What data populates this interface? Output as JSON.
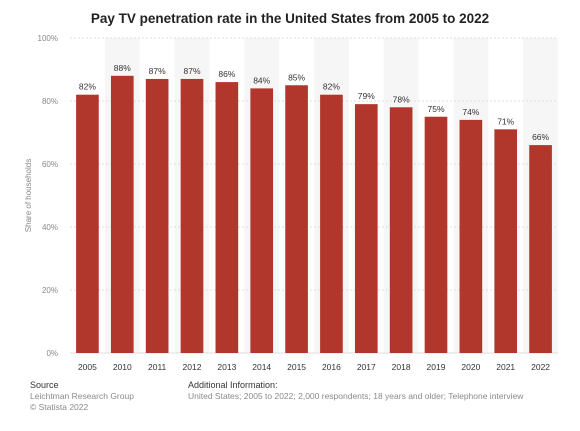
{
  "title": "Pay TV penetration rate in the United States from 2005 to 2022",
  "colors": {
    "bar": "#b1362b",
    "band": "#f6f6f6",
    "grid": "#dddddd"
  },
  "chart_data": {
    "type": "bar",
    "categories": [
      "2005",
      "2010",
      "2011",
      "2012",
      "2013",
      "2014",
      "2015",
      "2016",
      "2017",
      "2018",
      "2019",
      "2020",
      "2021",
      "2022"
    ],
    "values": [
      82,
      88,
      87,
      87,
      86,
      84,
      85,
      82,
      79,
      78,
      75,
      74,
      71,
      66
    ],
    "data_labels": [
      "82%",
      "88%",
      "87%",
      "87%",
      "86%",
      "84%",
      "85%",
      "82%",
      "79%",
      "78%",
      "75%",
      "74%",
      "71%",
      "66%"
    ],
    "ylabel": "Share of households",
    "ylim": [
      0,
      100
    ],
    "yticks": [
      0,
      20,
      40,
      60,
      80,
      100
    ],
    "ytick_labels": [
      "0%",
      "20%",
      "40%",
      "60%",
      "80%",
      "100%"
    ],
    "grid": true,
    "legend": "none"
  },
  "footer": {
    "source_heading": "Source",
    "source_lines": [
      "Leichtman Research Group",
      "© Statista 2022"
    ],
    "info_heading": "Additional Information:",
    "info_text": "United States; 2005 to 2022; 2,000 respondents; 18 years and older; Telephone interview"
  }
}
